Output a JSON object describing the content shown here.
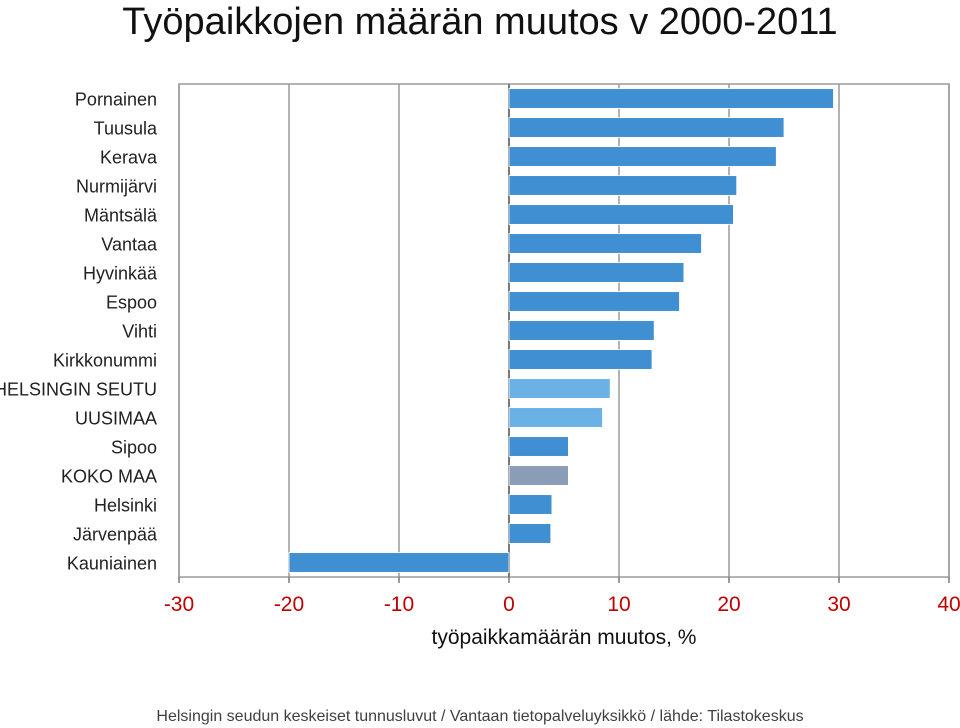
{
  "title": "Työpaikkojen määrän muutos v 2000-2011",
  "footer": "Helsingin seudun keskeiset tunnusluvut / Vantaan tietopalveluyksikkö / lähde: Tilastokeskus",
  "chart_data": {
    "type": "bar",
    "orientation": "horizontal",
    "categories": [
      "Pornainen",
      "Tuusula",
      "Kerava",
      "Nurmijärvi",
      "Mäntsälä",
      "Vantaa",
      "Hyvinkää",
      "Espoo",
      "Vihti",
      "Kirkkonummi",
      "HELSINGIN SEUTU",
      "UUSIMAA",
      "Sipoo",
      "KOKO MAA",
      "Helsinki",
      "Järvenpää",
      "Kauniainen"
    ],
    "values": [
      29.5,
      25.0,
      24.3,
      20.7,
      20.4,
      17.5,
      15.9,
      15.5,
      13.2,
      13.0,
      9.2,
      8.5,
      5.4,
      5.4,
      3.9,
      3.8,
      -20.0
    ],
    "bar_colors": [
      "#3f8fd2",
      "#3f8fd2",
      "#3f8fd2",
      "#3f8fd2",
      "#3f8fd2",
      "#3f8fd2",
      "#3f8fd2",
      "#3f8fd2",
      "#3f8fd2",
      "#3f8fd2",
      "#6ab2e6",
      "#6ab2e6",
      "#3f8fd2",
      "#8b9db6",
      "#3f8fd2",
      "#3f8fd2",
      "#3f8fd2"
    ],
    "xlabel": "työpaikkamäärän muutos, %",
    "xlim": [
      -30,
      40
    ],
    "xticks": [
      -30,
      -20,
      -10,
      0,
      10,
      20,
      30,
      40
    ],
    "tick_label_color": "#c00000",
    "grid": "vertical",
    "legend": "none"
  }
}
